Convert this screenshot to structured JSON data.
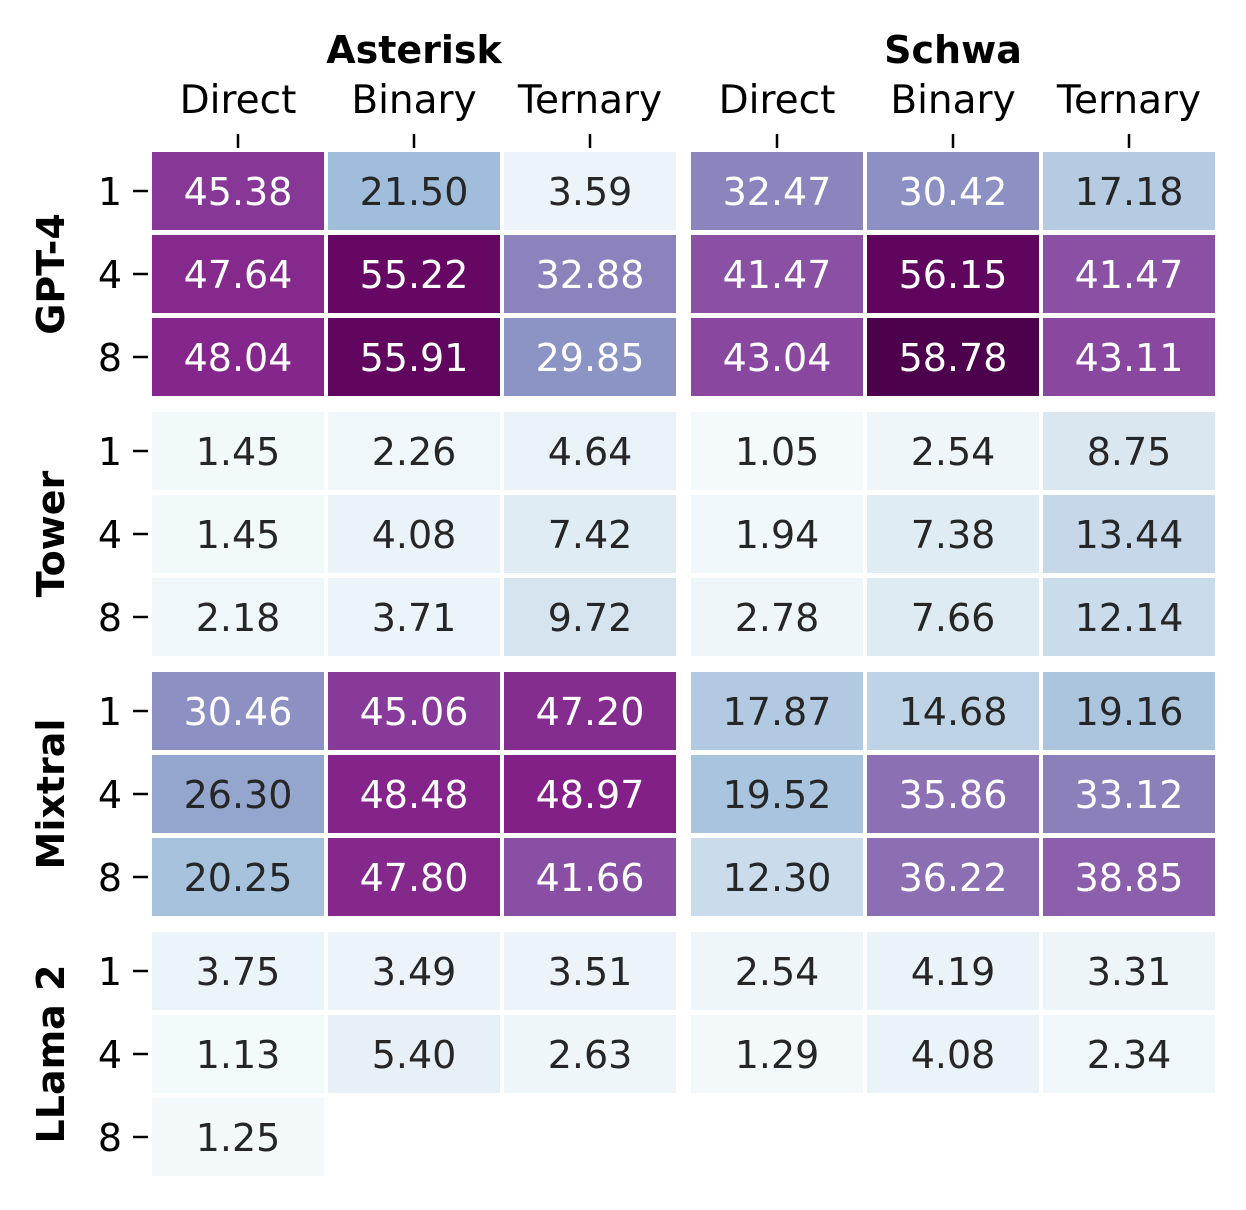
{
  "chart_data": {
    "type": "heatmap",
    "colormap": "BuPu",
    "vmin": 0,
    "vmax": 58.78,
    "column_groups": [
      {
        "name": "Asterisk",
        "columns": [
          "Direct",
          "Binary",
          "Ternary"
        ]
      },
      {
        "name": "Schwa",
        "columns": [
          "Direct",
          "Binary",
          "Ternary"
        ]
      }
    ],
    "row_groups": [
      {
        "name": "GPT-4",
        "rows": [
          {
            "label": "1",
            "values": [
              "45.38",
              "21.50",
              "3.59",
              "32.47",
              "30.42",
              "17.18"
            ]
          },
          {
            "label": "4",
            "values": [
              "47.64",
              "55.22",
              "32.88",
              "41.47",
              "56.15",
              "41.47"
            ]
          },
          {
            "label": "8",
            "values": [
              "48.04",
              "55.91",
              "29.85",
              "43.04",
              "58.78",
              "43.11"
            ]
          }
        ]
      },
      {
        "name": "Tower",
        "rows": [
          {
            "label": "1",
            "values": [
              "1.45",
              "2.26",
              "4.64",
              "1.05",
              "2.54",
              "8.75"
            ]
          },
          {
            "label": "4",
            "values": [
              "1.45",
              "4.08",
              "7.42",
              "1.94",
              "7.38",
              "13.44"
            ]
          },
          {
            "label": "8",
            "values": [
              "2.18",
              "3.71",
              "9.72",
              "2.78",
              "7.66",
              "12.14"
            ]
          }
        ]
      },
      {
        "name": "Mixtral",
        "rows": [
          {
            "label": "1",
            "values": [
              "30.46",
              "45.06",
              "47.20",
              "17.87",
              "14.68",
              "19.16"
            ]
          },
          {
            "label": "4",
            "values": [
              "26.30",
              "48.48",
              "48.97",
              "19.52",
              "35.86",
              "33.12"
            ]
          },
          {
            "label": "8",
            "values": [
              "20.25",
              "47.80",
              "41.66",
              "12.30",
              "36.22",
              "38.85"
            ]
          }
        ]
      },
      {
        "name": "LLama 2",
        "rows": [
          {
            "label": "1",
            "values": [
              "3.75",
              "3.49",
              "3.51",
              "2.54",
              "4.19",
              "3.31"
            ]
          },
          {
            "label": "4",
            "values": [
              "1.13",
              "5.40",
              "2.63",
              "1.29",
              "4.08",
              "2.34"
            ]
          },
          {
            "label": "8",
            "values": [
              "1.25",
              null,
              null,
              null,
              null,
              null
            ]
          }
        ]
      }
    ]
  }
}
